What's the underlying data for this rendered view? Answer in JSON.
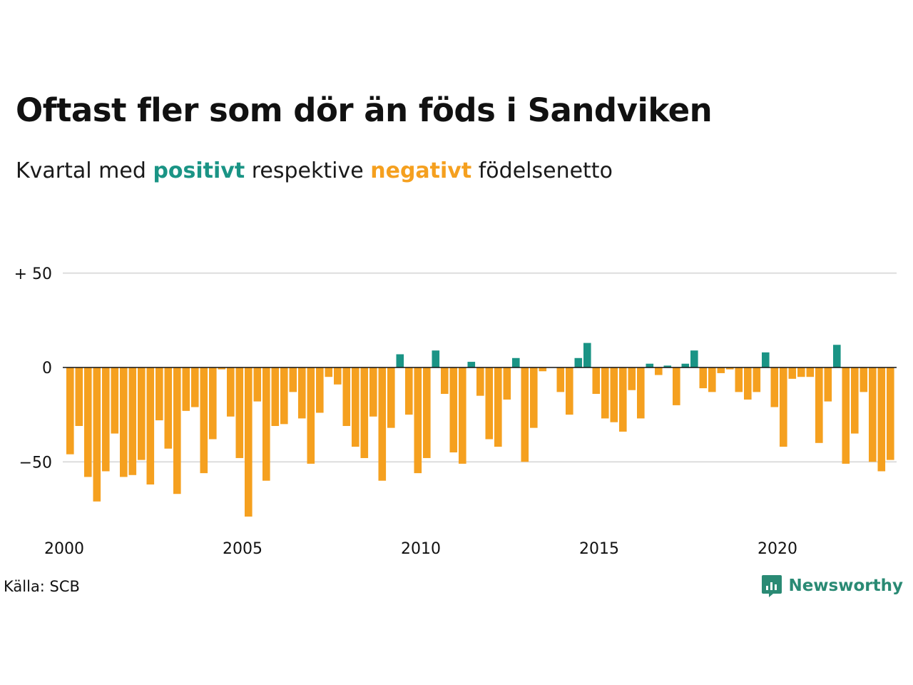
{
  "title": "Oftast fler som dör än föds i Sandviken",
  "subtitle": {
    "prefix": "Kvartal med",
    "positive_word": "positivt",
    "middle": "respektive",
    "negative_word": "negativt",
    "suffix": "födelsenetto"
  },
  "colors": {
    "positive": "#1a9485",
    "negative": "#f5a01f",
    "grid": "#dddddd",
    "zero_line": "#111111",
    "brand": "#2a8a74"
  },
  "source": "Källa: SCB",
  "brand": {
    "name": "Newsworthy",
    "icon": "newsworthy-logo-icon"
  },
  "chart_data": {
    "type": "bar",
    "title": "Oftast fler som dör än föds i Sandviken",
    "xlabel": "",
    "ylabel": "",
    "y_ticks": [
      {
        "value": 50,
        "label": "+ 50"
      },
      {
        "value": 0,
        "label": "0"
      },
      {
        "value": -50,
        "label": "−50"
      }
    ],
    "x_ticks": [
      {
        "value": 2000,
        "label": "2000"
      },
      {
        "value": 2005,
        "label": "2005"
      },
      {
        "value": 2010,
        "label": "2010"
      },
      {
        "value": 2015,
        "label": "2015"
      },
      {
        "value": 2020,
        "label": "2020"
      }
    ],
    "ylim": [
      -85,
      55
    ],
    "xlim": [
      2000,
      2023.25
    ],
    "grid": true,
    "legend": "none",
    "start_year": 2000,
    "quarters_per_year": 4,
    "values": [
      -46,
      -31,
      -58,
      -71,
      -55,
      -35,
      -58,
      -57,
      -49,
      -62,
      -28,
      -43,
      -67,
      -23,
      -21,
      -56,
      -38,
      -1,
      -26,
      -48,
      -79,
      -18,
      -60,
      -31,
      -30,
      -13,
      -27,
      -51,
      -24,
      -5,
      -9,
      -31,
      -42,
      -48,
      -26,
      -60,
      -32,
      7,
      -25,
      -56,
      -48,
      9,
      -14,
      -45,
      -51,
      3,
      -15,
      -38,
      -42,
      -17,
      5,
      -50,
      -32,
      -2,
      0,
      -13,
      -25,
      5,
      13,
      -14,
      -27,
      -29,
      -34,
      -12,
      -27,
      2,
      -4,
      1,
      -20,
      2,
      9,
      -11,
      -13,
      -3,
      -1,
      -13,
      -17,
      -13,
      8,
      -21,
      -42,
      -6,
      -5,
      -5,
      -40,
      -18,
      12,
      -51,
      -35,
      -13,
      -50,
      -55,
      -49
    ]
  }
}
